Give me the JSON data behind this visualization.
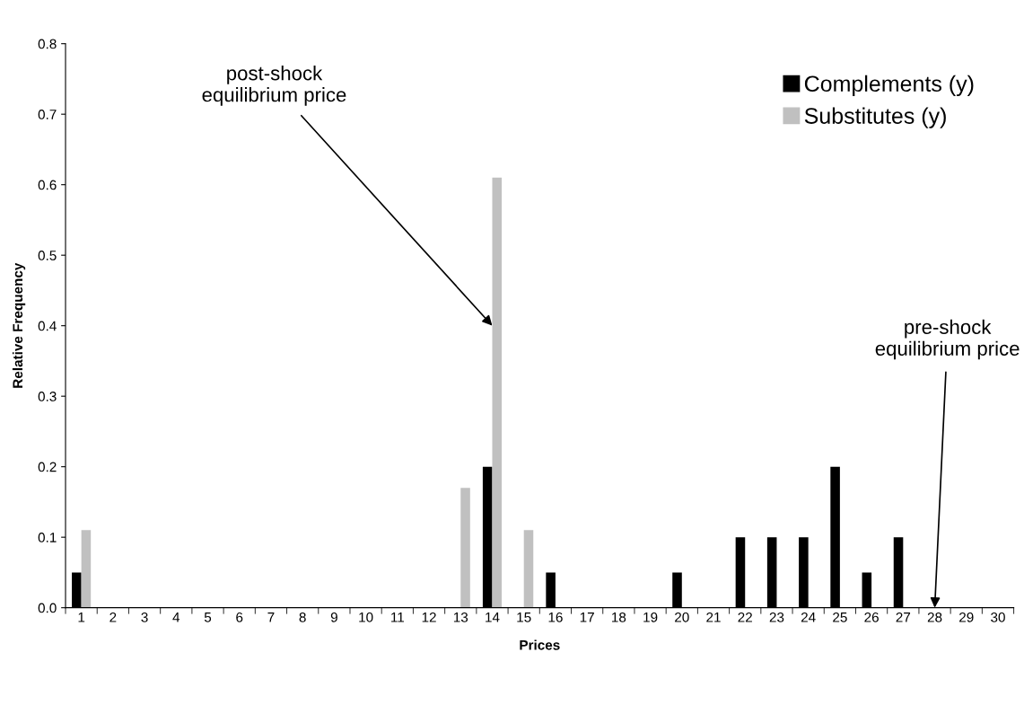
{
  "chart_data": {
    "type": "bar",
    "xlabel": "Prices",
    "ylabel": "Relative Frequency",
    "categories": [
      "1",
      "2",
      "3",
      "4",
      "5",
      "6",
      "7",
      "8",
      "9",
      "10",
      "11",
      "12",
      "13",
      "14",
      "15",
      "16",
      "17",
      "18",
      "19",
      "20",
      "21",
      "22",
      "23",
      "24",
      "25",
      "26",
      "27",
      "28",
      "29",
      "30"
    ],
    "series": [
      {
        "name": "Complements (y)",
        "color": "#000000",
        "values": [
          0.05,
          0,
          0,
          0,
          0,
          0,
          0,
          0,
          0,
          0,
          0,
          0,
          0,
          0.2,
          0,
          0.05,
          0,
          0,
          0,
          0.05,
          0,
          0.1,
          0.1,
          0.1,
          0.2,
          0.05,
          0.1,
          0,
          0,
          0
        ]
      },
      {
        "name": "Substitutes (y)",
        "color": "#c0c0c0",
        "values": [
          0.11,
          0,
          0,
          0,
          0,
          0,
          0,
          0,
          0,
          0,
          0,
          0,
          0.17,
          0.61,
          0.11,
          0,
          0,
          0,
          0,
          0,
          0,
          0,
          0,
          0,
          0,
          0,
          0,
          0,
          0,
          0
        ]
      }
    ],
    "ylim": [
      0,
      0.8
    ],
    "yticks": [
      {
        "value": 0,
        "label": "0.0"
      },
      {
        "value": 0.1,
        "label": "0.1"
      },
      {
        "value": 0.2,
        "label": "0.2"
      },
      {
        "value": 0.3,
        "label": "0.3"
      },
      {
        "value": 0.4,
        "label": "0.4"
      },
      {
        "value": 0.5,
        "label": "0.5"
      },
      {
        "value": 0.6,
        "label": "0.6"
      },
      {
        "value": 0.7,
        "label": "0.7"
      },
      {
        "value": 0.8,
        "label": "0.8"
      }
    ],
    "grid": false,
    "legend": "top right",
    "annotations": [
      {
        "text": "post-shock\nequilibrium price",
        "x": "14",
        "y": 0.4
      },
      {
        "text": "pre-shock\nequilibrium price",
        "x": "28",
        "y": 0
      }
    ]
  }
}
